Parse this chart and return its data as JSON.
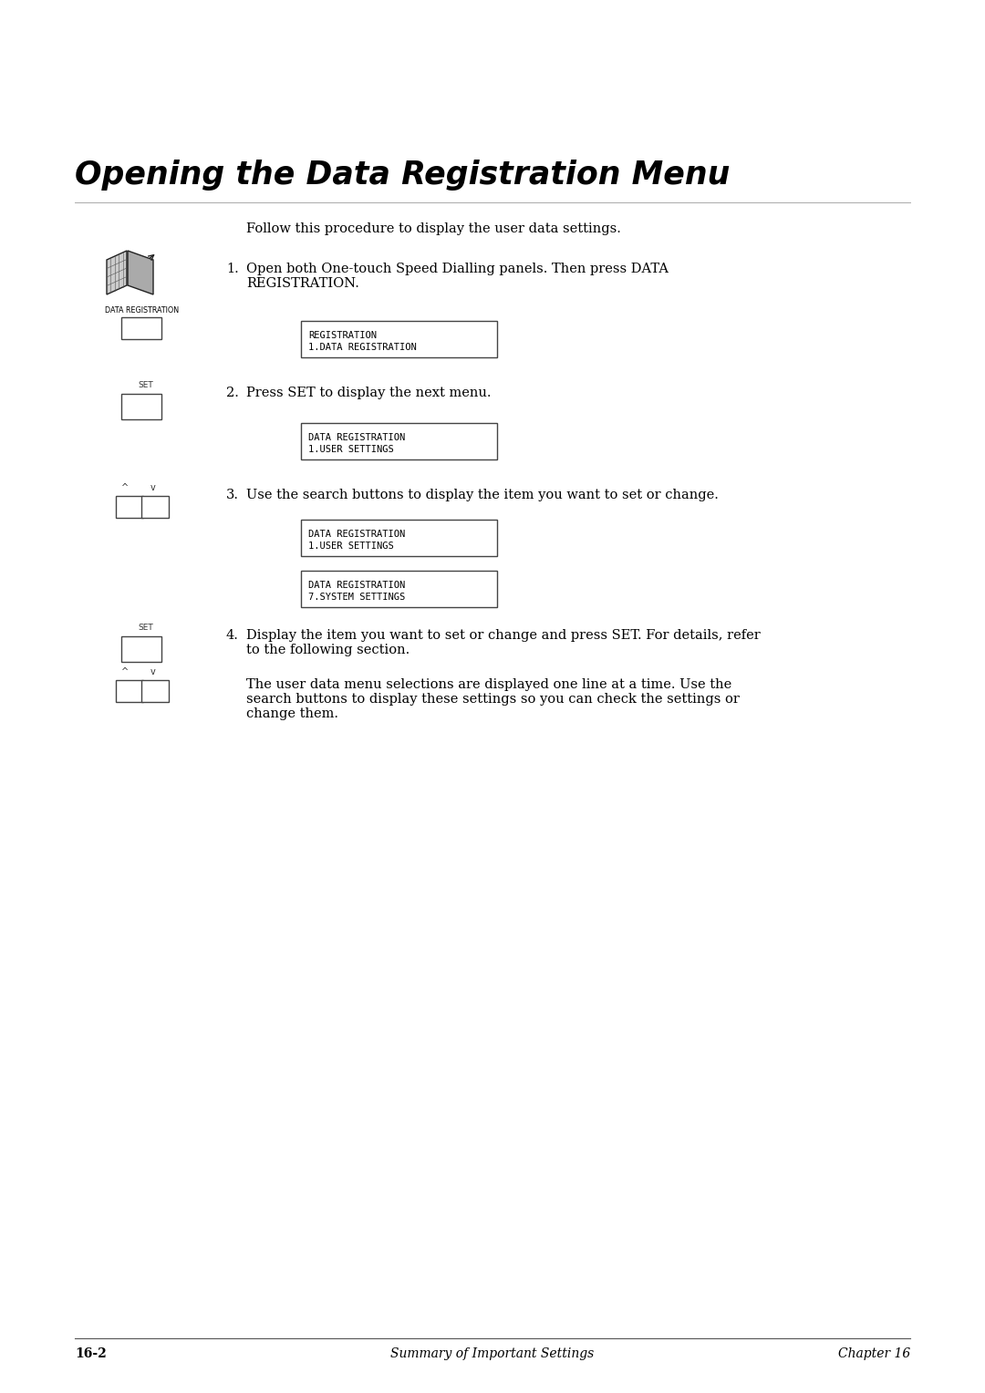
{
  "title": "Opening the Data Registration Menu",
  "background_color": "#ffffff",
  "text_color": "#000000",
  "page_width": 10.8,
  "page_height": 15.28,
  "intro_text": "Follow this procedure to display the user data settings.",
  "steps": [
    {
      "number": "1.",
      "text": "Open both One-touch Speed Dialling panels. Then press DATA\nREGISTRATION.",
      "lcd_boxes": [
        {
          "line1": "REGISTRATION",
          "line2": "1.DATA REGISTRATION"
        }
      ]
    },
    {
      "number": "2.",
      "text": "Press SET to display the next menu.",
      "lcd_boxes": [
        {
          "line1": "DATA REGISTRATION",
          "line2": "1.USER SETTINGS"
        }
      ]
    },
    {
      "number": "3.",
      "text": "Use the search buttons to display the item you want to set or change.",
      "lcd_boxes": [
        {
          "line1": "DATA REGISTRATION",
          "line2": "1.USER SETTINGS"
        },
        {
          "line1": "DATA REGISTRATION",
          "line2": "7.SYSTEM SETTINGS"
        }
      ]
    },
    {
      "number": "4.",
      "text": "Display the item you want to set or change and press SET. For details, refer\nto the following section.",
      "lcd_boxes": []
    }
  ],
  "note_text": "The user data menu selections are displayed one line at a time. Use the\nsearch buttons to display these settings so you can check the settings or\nchange them.",
  "footer_left": "16-2",
  "footer_center": "Summary of Important Settings",
  "footer_right": "Chapter 16"
}
